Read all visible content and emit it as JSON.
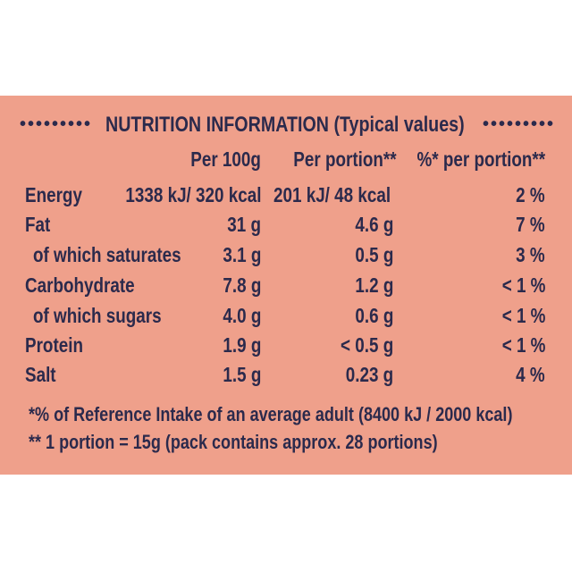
{
  "panel": {
    "title": "NUTRITION INFORMATION (Typical values)",
    "dots_left": "•••••••••",
    "dots_right": "•••••••••"
  },
  "headers": {
    "per100": "Per 100g",
    "per_portion": "Per portion**",
    "pct_portion": "%* per portion**"
  },
  "rows": [
    {
      "label": "Energy",
      "per100": "1338 kJ/ 320 kcal",
      "per_portion": "201 kJ/ 48 kcal",
      "pct": "2 %"
    },
    {
      "label": "Fat",
      "per100": "31 g",
      "per_portion": "4.6 g",
      "pct": "7 %"
    },
    {
      "label": "of which saturates",
      "per100": "3.1 g",
      "per_portion": "0.5 g",
      "pct": "3 %"
    },
    {
      "label": "Carbohydrate",
      "per100": "7.8 g",
      "per_portion": "1.2 g",
      "pct": "< 1 %"
    },
    {
      "label": "of which sugars",
      "per100": "4.0 g",
      "per_portion": "0.6 g",
      "pct": "< 1 %"
    },
    {
      "label": "Protein",
      "per100": "1.9 g",
      "per_portion": "< 0.5 g",
      "pct": "< 1 %"
    },
    {
      "label": "Salt",
      "per100": "1.5 g",
      "per_portion": "0.23 g",
      "pct": "4 %"
    }
  ],
  "footnotes": {
    "ri": "*% of Reference Intake of an average adult (8400 kJ / 2000 kcal)",
    "portion": "** 1 portion = 15g (pack contains approx. 28 portions)"
  },
  "colors": {
    "background": "#efa08b",
    "text": "#2b2a4c"
  }
}
